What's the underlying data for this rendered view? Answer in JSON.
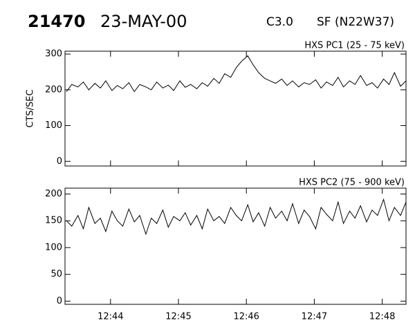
{
  "header": {
    "id": "21470",
    "date": "23-MAY-00",
    "class": "C3.0",
    "location": "SF (N22W37)"
  },
  "chart_data": [
    {
      "type": "line",
      "title": "HXS PC1 (25 - 75 keV)",
      "y_label": "CTS/SEC",
      "x": [
        43.35,
        43.43,
        43.52,
        43.6,
        43.68,
        43.77,
        43.85,
        43.93,
        44.02,
        44.1,
        44.18,
        44.27,
        44.35,
        44.43,
        44.52,
        44.6,
        44.68,
        44.77,
        44.85,
        44.93,
        45.02,
        45.1,
        45.18,
        45.27,
        45.35,
        45.43,
        45.52,
        45.6,
        45.68,
        45.77,
        45.85,
        45.93,
        46.02,
        46.1,
        46.18,
        46.27,
        46.35,
        46.43,
        46.52,
        46.6,
        46.68,
        46.77,
        46.85,
        46.93,
        47.02,
        47.1,
        47.18,
        47.27,
        47.35,
        47.43,
        47.52,
        47.6,
        47.68,
        47.77,
        47.85,
        47.93,
        48.02,
        48.1,
        48.18,
        48.27,
        48.35
      ],
      "series": [
        {
          "color": "#000000",
          "values": [
            195,
            215,
            208,
            222,
            200,
            218,
            205,
            225,
            198,
            212,
            203,
            220,
            195,
            215,
            208,
            200,
            222,
            205,
            213,
            198,
            225,
            207,
            215,
            203,
            220,
            210,
            232,
            218,
            245,
            235,
            262,
            280,
            295,
            270,
            248,
            232,
            225,
            218,
            230,
            212,
            225,
            208,
            220,
            215,
            228,
            205,
            222,
            212,
            235,
            208,
            225,
            215,
            240,
            212,
            220,
            205,
            230,
            215,
            248,
            210,
            225
          ]
        }
      ],
      "xlim": [
        43.33,
        48.35
      ],
      "xticks": [
        44,
        45,
        46,
        47,
        48
      ],
      "ylim": [
        -13,
        308
      ],
      "yticks": [
        0,
        100,
        200,
        300
      ]
    },
    {
      "type": "line",
      "title": "HXS PC2 (75 - 900 keV)",
      "x": [
        43.35,
        43.43,
        43.52,
        43.6,
        43.68,
        43.77,
        43.85,
        43.93,
        44.02,
        44.1,
        44.18,
        44.27,
        44.35,
        44.43,
        44.52,
        44.6,
        44.68,
        44.77,
        44.85,
        44.93,
        45.02,
        45.1,
        45.18,
        45.27,
        45.35,
        45.43,
        45.52,
        45.6,
        45.68,
        45.77,
        45.85,
        45.93,
        46.02,
        46.1,
        46.18,
        46.27,
        46.35,
        46.43,
        46.52,
        46.6,
        46.68,
        46.77,
        46.85,
        46.93,
        47.02,
        47.1,
        47.18,
        47.27,
        47.35,
        47.43,
        47.52,
        47.6,
        47.68,
        47.77,
        47.85,
        47.93,
        48.02,
        48.1,
        48.18,
        48.27,
        48.35
      ],
      "series": [
        {
          "color": "#000000",
          "values": [
            150,
            140,
            160,
            135,
            175,
            145,
            155,
            130,
            168,
            150,
            140,
            172,
            148,
            160,
            125,
            155,
            145,
            170,
            138,
            158,
            150,
            165,
            142,
            160,
            135,
            172,
            150,
            158,
            145,
            175,
            160,
            150,
            180,
            148,
            165,
            140,
            175,
            155,
            168,
            150,
            182,
            145,
            170,
            158,
            135,
            175,
            162,
            150,
            185,
            145,
            168,
            155,
            178,
            148,
            170,
            160,
            190,
            150,
            175,
            160,
            185
          ]
        }
      ],
      "xlim": [
        43.33,
        48.35
      ],
      "xticks": [
        {
          "value": 44,
          "label": "12:44"
        },
        {
          "value": 45,
          "label": "12:45"
        },
        {
          "value": 46,
          "label": "12:46"
        },
        {
          "value": 47,
          "label": "12:47"
        },
        {
          "value": 48,
          "label": "12:48"
        }
      ],
      "ylim": [
        -6,
        211
      ],
      "yticks": [
        0,
        50,
        100,
        150,
        200
      ]
    }
  ]
}
